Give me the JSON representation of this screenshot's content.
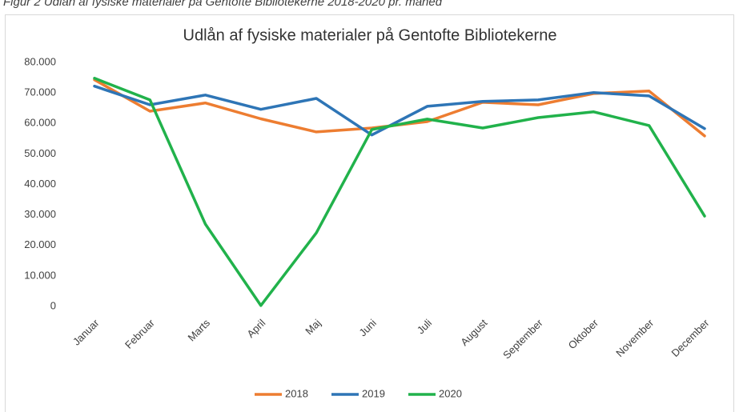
{
  "caption": "Figur 2 Udlån af fysiske materialer på Gentofte Bibliotekerne 2018-2020 pr. måned",
  "chart_data": {
    "type": "line",
    "title": "Udlån af fysiske materialer på Gentofte Bibliotekerne",
    "categories": [
      "Januar",
      "Februar",
      "Marts",
      "April",
      "Maj",
      "Juni",
      "Juli",
      "August",
      "September",
      "Oktober",
      "November",
      "December"
    ],
    "series": [
      {
        "name": "2018",
        "color": "#ed7d31",
        "values": [
          74300,
          64000,
          66700,
          61500,
          57200,
          58500,
          60600,
          66900,
          66100,
          69800,
          70600,
          55900
        ]
      },
      {
        "name": "2019",
        "color": "#2e75b6",
        "values": [
          72200,
          66100,
          69300,
          64600,
          68200,
          56200,
          65600,
          67200,
          67700,
          70100,
          69000,
          58300
        ]
      },
      {
        "name": "2020",
        "color": "#21b24b",
        "values": [
          74800,
          67700,
          27000,
          300,
          24100,
          58000,
          61400,
          58500,
          61900,
          63800,
          59300,
          29600
        ]
      }
    ],
    "ylim": [
      0,
      80000
    ],
    "yticks": [
      0,
      {
        "value": 10000,
        "label": "10.000"
      },
      {
        "value": 20000,
        "label": "20.000"
      },
      {
        "value": 30000,
        "label": "30.000"
      },
      {
        "value": 40000,
        "label": "40.000"
      },
      {
        "value": 50000,
        "label": "50.000"
      },
      {
        "value": 60000,
        "label": "60.000"
      },
      {
        "value": 70000,
        "label": "70.000"
      },
      {
        "value": 80000,
        "label": "80.000"
      }
    ],
    "grid": false,
    "legend": "bottom"
  }
}
